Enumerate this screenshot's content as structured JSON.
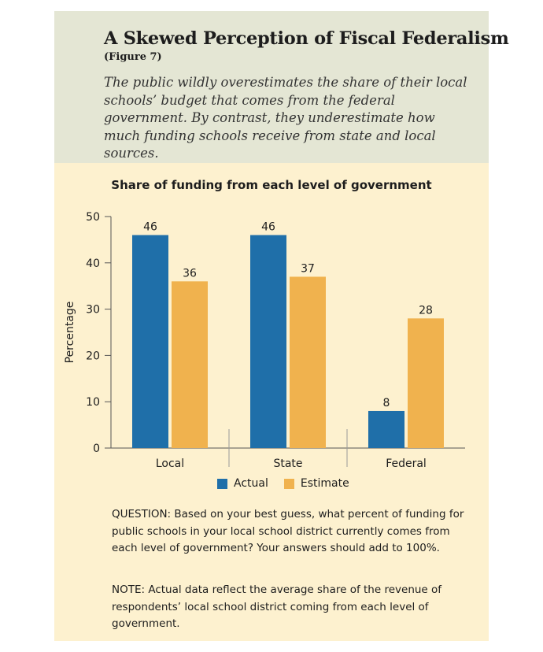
{
  "header": {
    "title": "A Skewed Perception of Fiscal Federalism",
    "subtitle": "(Figure 7)",
    "description": "The public wildly overestimates the share of their local schools’ budget that comes from the federal government. By contrast, they underestimate how much funding schools receive from state and local sources."
  },
  "chart_data": {
    "type": "bar",
    "title": "Share of funding from each level of government",
    "xlabel": "",
    "ylabel": "Percentage",
    "categories": [
      "Local",
      "State",
      "Federal"
    ],
    "series": [
      {
        "name": "Actual",
        "values": [
          46,
          46,
          8
        ],
        "color": "#1f6fa9"
      },
      {
        "name": "Estimate",
        "values": [
          36,
          37,
          28
        ],
        "color": "#f0b24e"
      }
    ],
    "data_labels": [
      [
        "46",
        "46",
        "8"
      ],
      [
        "36",
        "37",
        "28"
      ]
    ],
    "ylim": [
      0,
      50
    ],
    "yticks": [
      0,
      10,
      20,
      30,
      40,
      50
    ],
    "grid": false,
    "legend_position": "bottom"
  },
  "footnotes": {
    "question": "QUESTION: Based on your best guess, what percent of funding for public schools in your local school district currently comes from each level of government? Your answers should add to 100%.",
    "note": "NOTE: Actual data reflect the average share of the revenue of respondents’ local school district coming from each level of government."
  }
}
